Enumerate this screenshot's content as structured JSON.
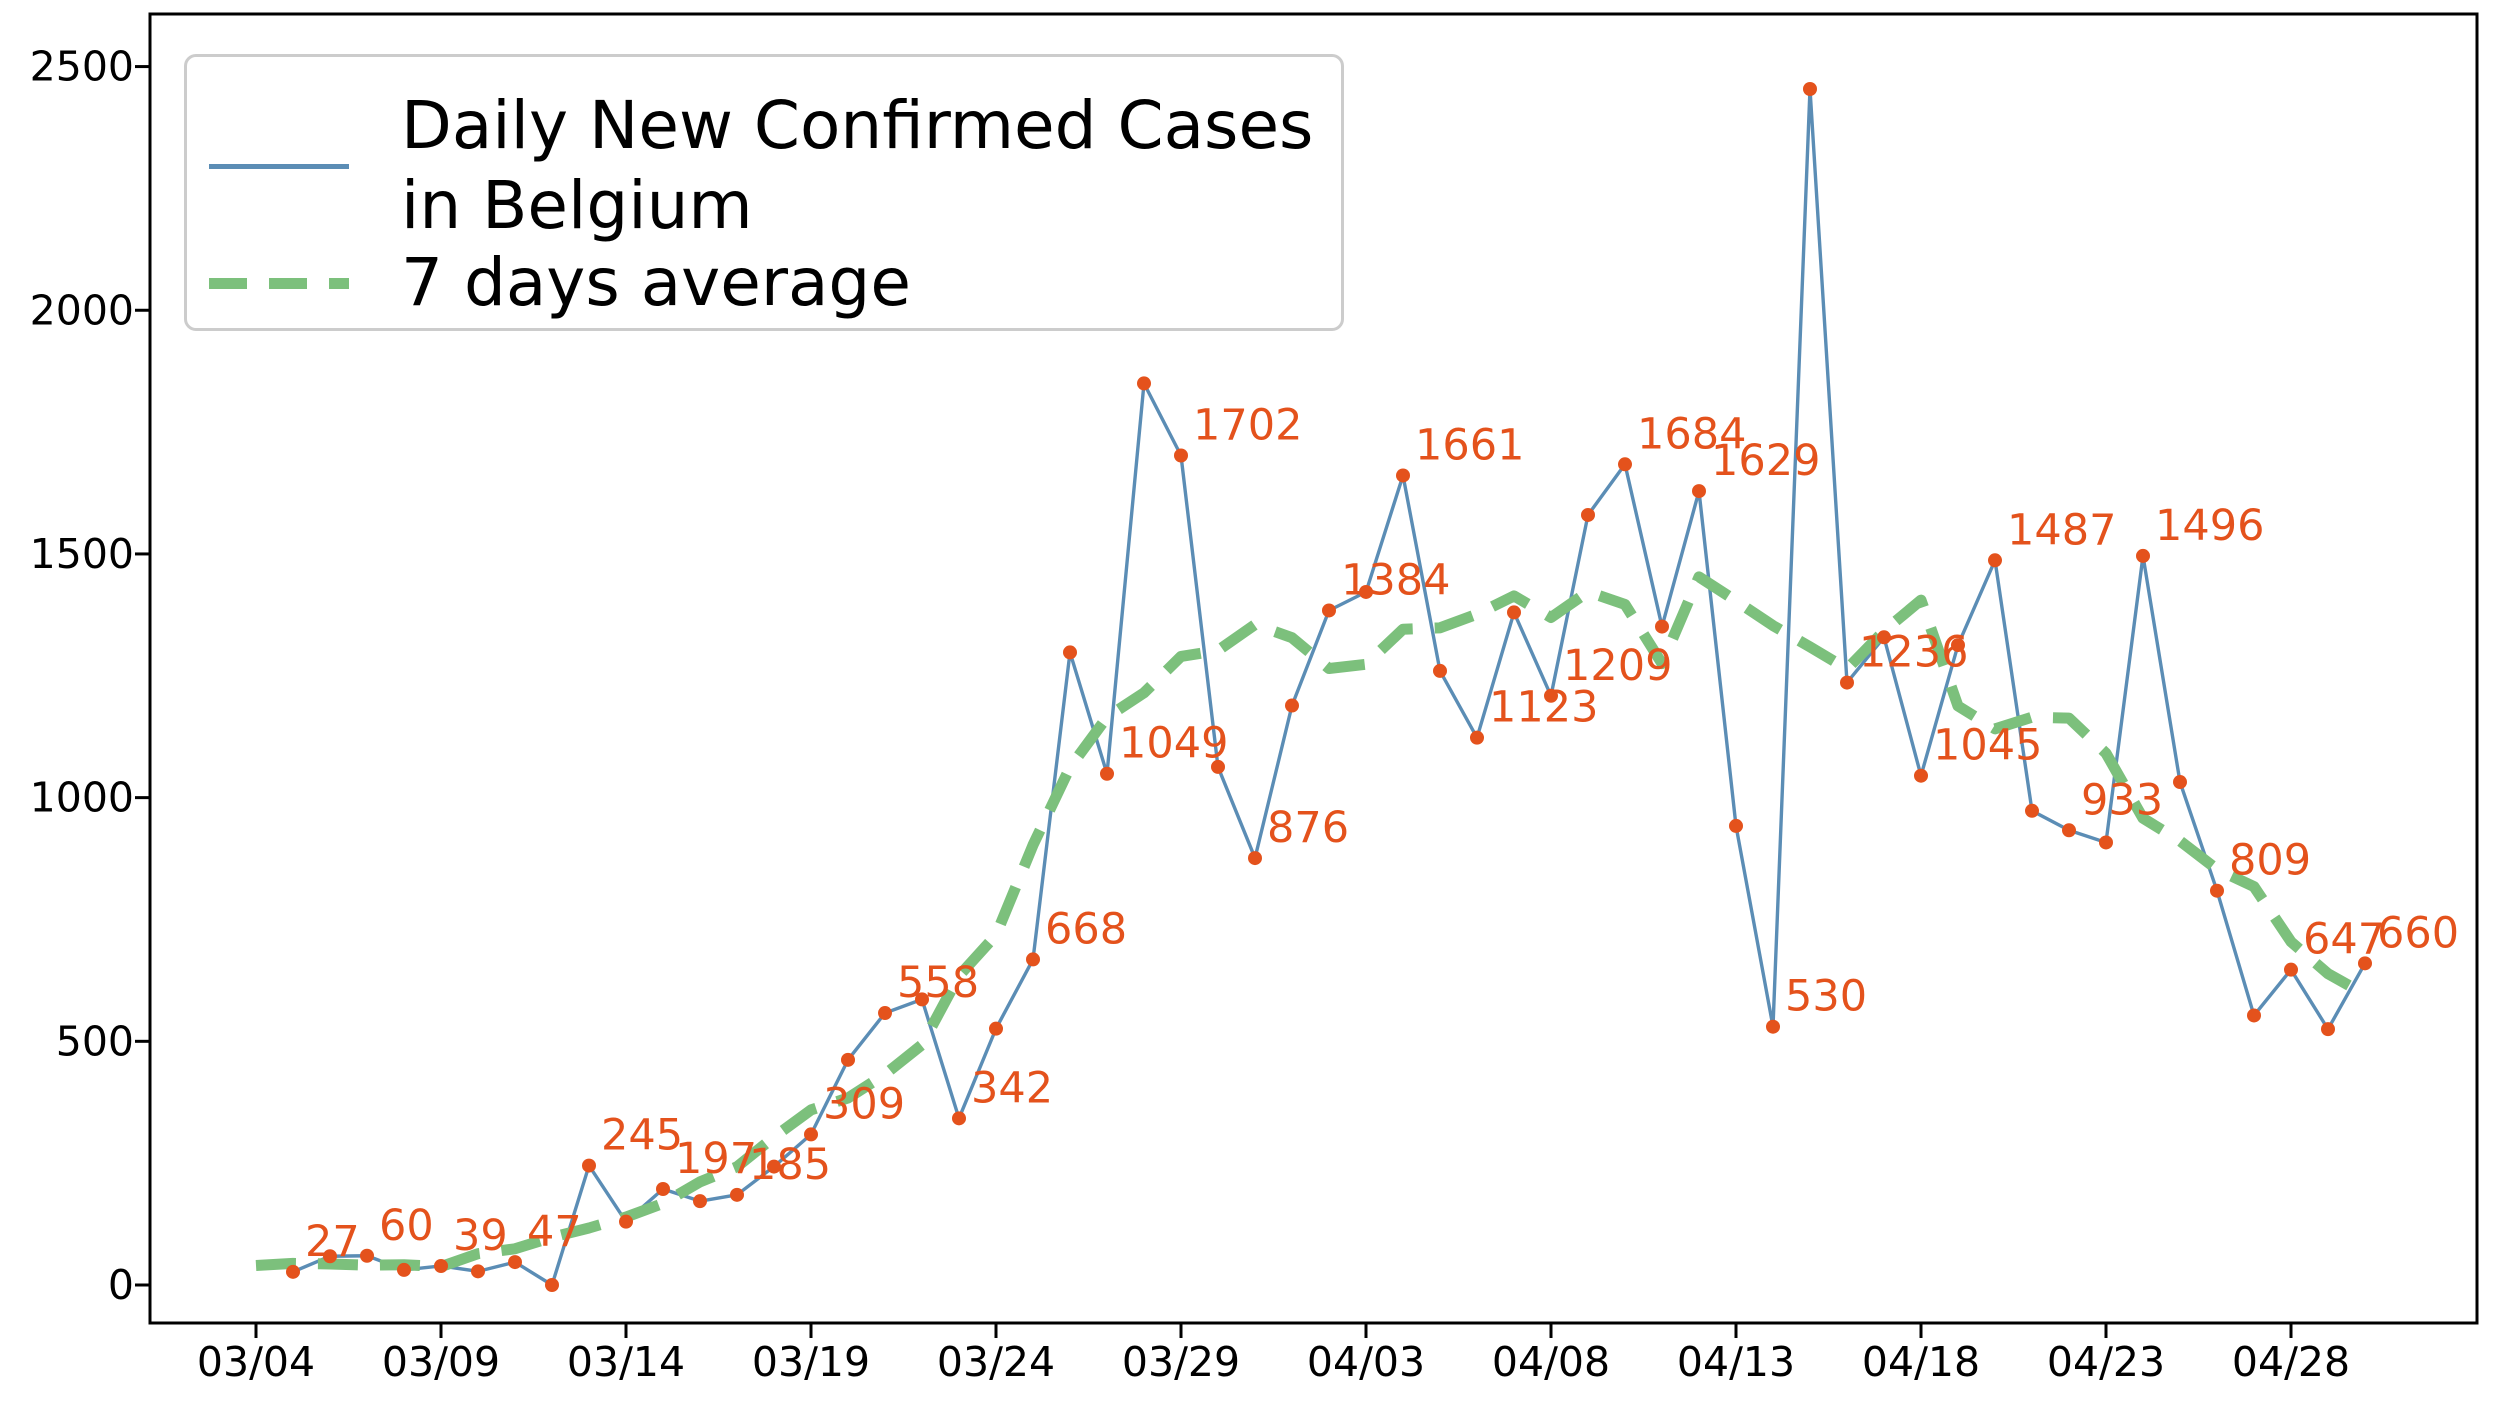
{
  "legend": {
    "daily_label": "Daily New Confirmed Cases\n in Belgium",
    "average_label": "7 days average"
  },
  "colors": {
    "daily_line": "#5b8db5",
    "average_line": "#7cc07c",
    "marker": "#e4521c",
    "value_label": "#e4521c",
    "axis": "#000000",
    "legend_border": "#cccccc",
    "background": "#ffffff"
  },
  "chart_data": {
    "type": "line",
    "title": "",
    "xlabel": "",
    "ylabel": "",
    "grid": false,
    "legend_position": "upper left",
    "ylim": [
      -78,
      2608
    ],
    "y_ticks": [
      0,
      500,
      1000,
      1500,
      2000,
      2500
    ],
    "y_tick_labels": [
      "0",
      "500",
      "1000",
      "1500",
      "2000",
      "2500"
    ],
    "x_tick_days": [
      0,
      5,
      10,
      15,
      20,
      25,
      30,
      35,
      40,
      45,
      50,
      55
    ],
    "x_tick_labels": [
      "03/04",
      "03/09",
      "03/14",
      "03/19",
      "03/24",
      "03/29",
      "04/03",
      "04/08",
      "04/13",
      "04/18",
      "04/23",
      "04/28"
    ],
    "dates": [
      "03/04",
      "03/05",
      "03/06",
      "03/07",
      "03/08",
      "03/09",
      "03/10",
      "03/11",
      "03/12",
      "03/13",
      "03/14",
      "03/15",
      "03/16",
      "03/17",
      "03/18",
      "03/19",
      "03/20",
      "03/21",
      "03/22",
      "03/23",
      "03/24",
      "03/25",
      "03/26",
      "03/27",
      "03/28",
      "03/29",
      "03/30",
      "03/31",
      "04/01",
      "04/02",
      "04/03",
      "04/04",
      "04/05",
      "04/06",
      "04/07",
      "04/08",
      "04/09",
      "04/10",
      "04/11",
      "04/12",
      "04/13",
      "04/14",
      "04/15",
      "04/16",
      "04/17",
      "04/18",
      "04/19",
      "04/20",
      "04/21",
      "04/22",
      "04/23",
      "04/24",
      "04/25",
      "04/26",
      "04/27",
      "04/28",
      "04/29",
      "04/30"
    ],
    "series": [
      {
        "name": "Daily New Confirmed Cases\n in Belgium",
        "start_date_index": 1,
        "values": [
          27,
          59,
          60,
          31,
          39,
          28,
          47,
          0,
          245,
          130,
          197,
          172,
          185,
          243,
          309,
          462,
          558,
          586,
          342,
          526,
          668,
          1298,
          1049,
          1850,
          1702,
          1063,
          876,
          1189,
          1384,
          1422,
          1661,
          1260,
          1123,
          1380,
          1209,
          1580,
          1684,
          1351,
          1629,
          942,
          530,
          2454,
          1236,
          1329,
          1045,
          1313,
          1487,
          973,
          933,
          908,
          1496,
          1032,
          809,
          553,
          647,
          525,
          660
        ],
        "marker": "circle",
        "label_every": 2
      },
      {
        "name": "7 days average",
        "start_date_index": 0,
        "values": [
          40.0,
          44.3,
          43.2,
          40.7,
          41.6,
          37.7,
          64.3,
          74.3,
          98.0,
          117.0,
          139.4,
          167.4,
          211.6,
          242.6,
          303.7,
          359.3,
          383.6,
          432.3,
          493.0,
          634.3,
          718.1,
          902.7,
          1062.1,
          1165.1,
          1215.1,
          1289.6,
          1301.9,
          1355.1,
          1328.1,
          1265.0,
          1273.6,
          1345.6,
          1348.4,
          1376.4,
          1413.9,
          1369.6,
          1422.3,
          1396.4,
          1275.0,
          1452.9,
          1403.7,
          1353.0,
          1309.3,
          1264.1,
          1342.0,
          1405.3,
          1188.0,
          1141.1,
          1165.0,
          1163.1,
          1091.1,
          957.7,
          911.1,
          852.9,
          817.4,
          704.3,
          638.8,
          596.3
        ],
        "marker": "none"
      }
    ],
    "point_labels": [
      "27",
      "60",
      "39",
      "47",
      "245",
      "197",
      "185",
      "309",
      "558",
      "342",
      "668",
      "1049",
      "1702",
      "876",
      "1384",
      "1661",
      "1123",
      "1209",
      "1684",
      "1629",
      "530",
      "1236",
      "1045",
      "1487",
      "933",
      "1496",
      "809",
      "647",
      "660"
    ]
  }
}
